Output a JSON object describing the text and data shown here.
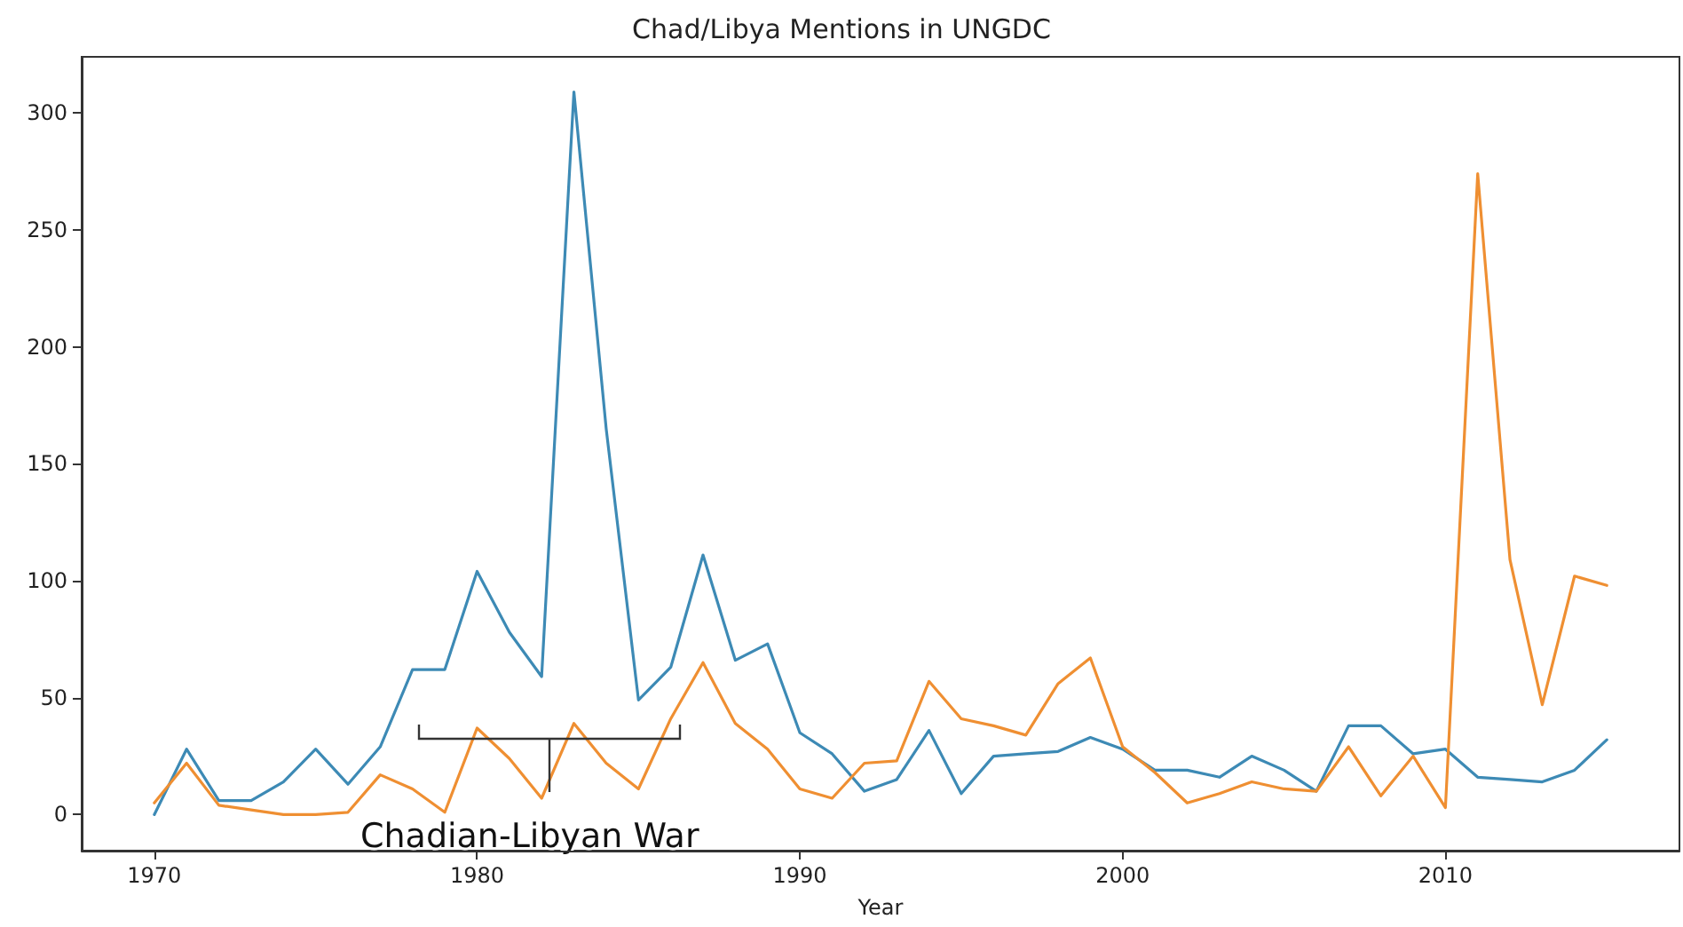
{
  "chart_data": {
    "type": "line",
    "title": "Chad/Libya Mentions in UNGDC",
    "xlabel": "Year",
    "x": [
      1970,
      1971,
      1972,
      1973,
      1974,
      1975,
      1976,
      1977,
      1978,
      1979,
      1980,
      1981,
      1982,
      1983,
      1984,
      1985,
      1986,
      1987,
      1988,
      1989,
      1990,
      1991,
      1992,
      1993,
      1994,
      1995,
      1996,
      1997,
      1998,
      1999,
      2000,
      2001,
      2002,
      2003,
      2004,
      2005,
      2006,
      2007,
      2008,
      2009,
      2010,
      2011,
      2012,
      2013,
      2014,
      2015
    ],
    "series": [
      {
        "color": "#3d8ab5",
        "values": [
          0,
          28,
          6,
          6,
          14,
          28,
          13,
          29,
          62,
          62,
          104,
          78,
          59,
          309,
          165,
          49,
          63,
          111,
          66,
          73,
          35,
          26,
          10,
          15,
          36,
          9,
          25,
          26,
          27,
          33,
          28,
          19,
          19,
          16,
          25,
          19,
          10,
          38,
          38,
          26,
          28,
          16,
          15,
          14,
          19,
          32
        ]
      },
      {
        "color": "#ef8f32",
        "values": [
          5,
          22,
          4,
          2,
          0,
          0,
          1,
          17,
          11,
          1,
          37,
          24,
          7,
          39,
          22,
          11,
          41,
          65,
          39,
          28,
          11,
          7,
          22,
          23,
          57,
          41,
          38,
          34,
          56,
          67,
          29,
          18,
          5,
          9,
          14,
          11,
          10,
          29,
          8,
          25,
          3,
          274,
          109,
          47,
          102,
          98
        ]
      }
    ],
    "xlim": [
      1967.75,
      2017.25
    ],
    "ylim": [
      -15.4,
      324
    ],
    "xticks": [
      1970,
      1980,
      1990,
      2000,
      2010
    ],
    "yticks": [
      0,
      50,
      100,
      150,
      200,
      250,
      300
    ],
    "annotations": [
      "Chadian-Libyan War"
    ],
    "grid": false,
    "marker": "none",
    "line_style": "solid"
  }
}
